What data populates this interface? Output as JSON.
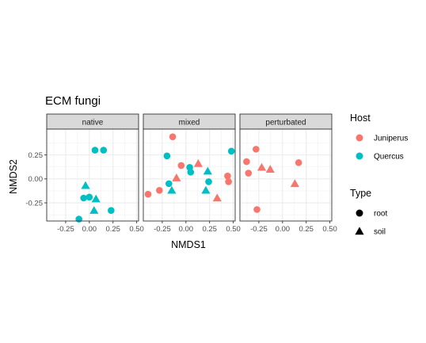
{
  "chart_data": {
    "type": "scatter",
    "title": "ECM fungi",
    "xlabel": "NMDS1",
    "ylabel": "NMDS2",
    "xlim": [
      -0.45,
      0.52
    ],
    "ylim": [
      -0.44,
      0.52
    ],
    "xticks": [
      -0.25,
      0.0,
      0.25,
      0.5
    ],
    "xtick_labels": [
      "-0.25",
      "0.00",
      "0.25",
      "0.50"
    ],
    "yticks": [
      -0.25,
      0.0,
      0.25
    ],
    "ytick_labels": [
      "-0.25",
      "0.00",
      "0.25"
    ],
    "grid": true,
    "colors": {
      "Juniperus": "#F8766D",
      "Quercus": "#00BFC4"
    },
    "panels": [
      {
        "name": "native",
        "points": [
          {
            "x": 0.06,
            "y": 0.3,
            "host": "Quercus",
            "type": "root"
          },
          {
            "x": 0.15,
            "y": 0.3,
            "host": "Quercus",
            "type": "root"
          },
          {
            "x": -0.06,
            "y": -0.2,
            "host": "Quercus",
            "type": "root"
          },
          {
            "x": 0.0,
            "y": -0.19,
            "host": "Quercus",
            "type": "root"
          },
          {
            "x": 0.23,
            "y": -0.33,
            "host": "Quercus",
            "type": "root"
          },
          {
            "x": -0.11,
            "y": -0.42,
            "host": "Quercus",
            "type": "root"
          },
          {
            "x": -0.04,
            "y": -0.07,
            "host": "Quercus",
            "type": "soil"
          },
          {
            "x": 0.07,
            "y": -0.21,
            "host": "Quercus",
            "type": "soil"
          },
          {
            "x": 0.05,
            "y": -0.33,
            "host": "Quercus",
            "type": "soil"
          }
        ]
      },
      {
        "name": "mixed",
        "points": [
          {
            "x": -0.14,
            "y": 0.44,
            "host": "Juniperus",
            "type": "root"
          },
          {
            "x": -0.05,
            "y": 0.14,
            "host": "Juniperus",
            "type": "root"
          },
          {
            "x": 0.44,
            "y": 0.03,
            "host": "Juniperus",
            "type": "root"
          },
          {
            "x": 0.45,
            "y": -0.03,
            "host": "Juniperus",
            "type": "root"
          },
          {
            "x": -0.28,
            "y": -0.12,
            "host": "Juniperus",
            "type": "root"
          },
          {
            "x": -0.4,
            "y": -0.16,
            "host": "Juniperus",
            "type": "root"
          },
          {
            "x": -0.2,
            "y": 0.24,
            "host": "Quercus",
            "type": "root"
          },
          {
            "x": 0.04,
            "y": 0.12,
            "host": "Quercus",
            "type": "root"
          },
          {
            "x": 0.05,
            "y": 0.07,
            "host": "Quercus",
            "type": "root"
          },
          {
            "x": 0.24,
            "y": -0.03,
            "host": "Quercus",
            "type": "root"
          },
          {
            "x": -0.18,
            "y": -0.05,
            "host": "Quercus",
            "type": "root"
          },
          {
            "x": 0.48,
            "y": 0.29,
            "host": "Quercus",
            "type": "root"
          },
          {
            "x": 0.13,
            "y": 0.16,
            "host": "Juniperus",
            "type": "soil"
          },
          {
            "x": -0.1,
            "y": 0.01,
            "host": "Juniperus",
            "type": "soil"
          },
          {
            "x": 0.33,
            "y": -0.2,
            "host": "Juniperus",
            "type": "soil"
          },
          {
            "x": 0.23,
            "y": 0.08,
            "host": "Quercus",
            "type": "soil"
          },
          {
            "x": -0.15,
            "y": -0.12,
            "host": "Quercus",
            "type": "soil"
          },
          {
            "x": 0.21,
            "y": -0.12,
            "host": "Quercus",
            "type": "soil"
          }
        ]
      },
      {
        "name": "perturbated",
        "points": [
          {
            "x": -0.28,
            "y": 0.31,
            "host": "Juniperus",
            "type": "root"
          },
          {
            "x": -0.38,
            "y": 0.18,
            "host": "Juniperus",
            "type": "root"
          },
          {
            "x": -0.36,
            "y": 0.06,
            "host": "Juniperus",
            "type": "root"
          },
          {
            "x": -0.27,
            "y": -0.32,
            "host": "Juniperus",
            "type": "root"
          },
          {
            "x": 0.17,
            "y": 0.17,
            "host": "Juniperus",
            "type": "root"
          },
          {
            "x": -0.22,
            "y": 0.12,
            "host": "Juniperus",
            "type": "soil"
          },
          {
            "x": -0.13,
            "y": 0.1,
            "host": "Juniperus",
            "type": "soil"
          },
          {
            "x": 0.13,
            "y": -0.05,
            "host": "Juniperus",
            "type": "soil"
          }
        ]
      }
    ],
    "legend": {
      "placement": "right",
      "host_title": "Host",
      "host_items": [
        "Juniperus",
        "Quercus"
      ],
      "type_title": "Type",
      "type_items": [
        "root",
        "soil"
      ]
    }
  }
}
